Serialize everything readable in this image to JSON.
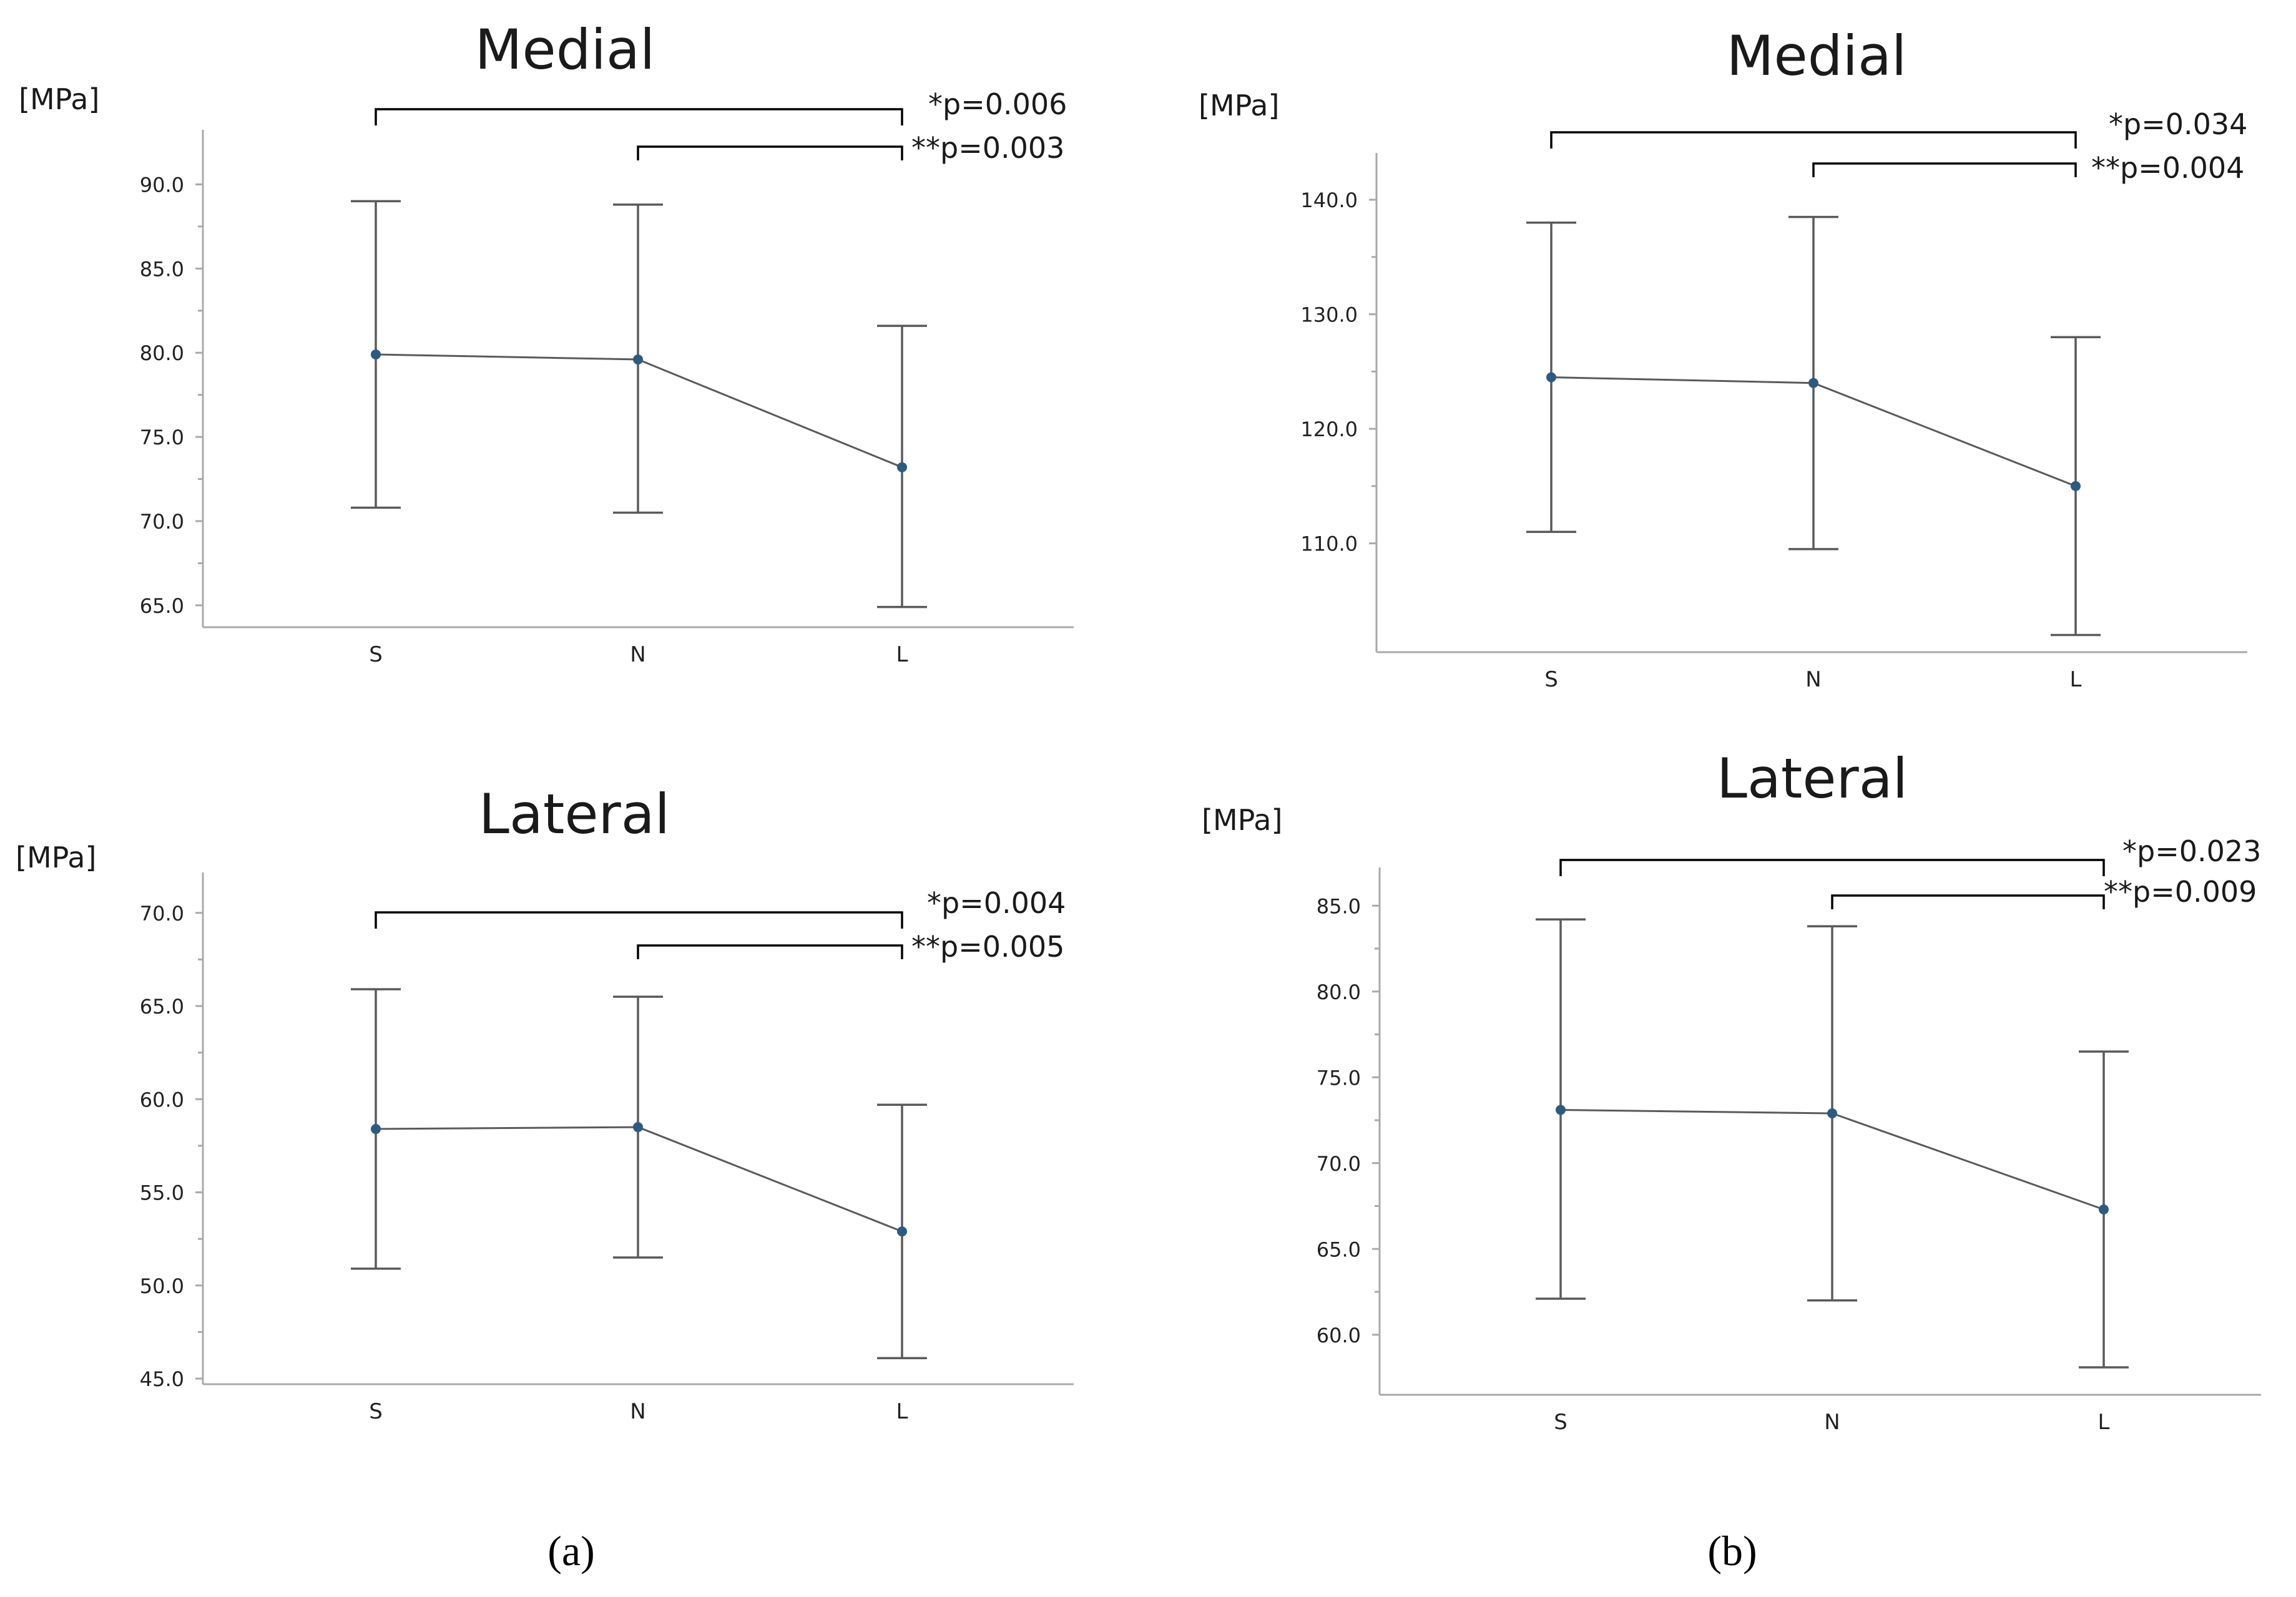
{
  "unit_label": "[MPa]",
  "panel_labels": [
    "(a)",
    "(b)"
  ],
  "chart_data": [
    {
      "type": "line",
      "panel": "a",
      "title": "Medial",
      "ylabel": "[MPa]",
      "xlabel": "",
      "categories": [
        "S",
        "N",
        "L"
      ],
      "mean": [
        79.9,
        79.6,
        73.2
      ],
      "error_upper": [
        89.0,
        88.8,
        81.6
      ],
      "error_lower": [
        70.8,
        70.5,
        64.9
      ],
      "ylim": [
        63.7,
        92.5
      ],
      "yticks": [
        "65.0",
        "70.0",
        "75.0",
        "80.0",
        "85.0",
        "90.0"
      ],
      "annotations": [
        {
          "from": "S",
          "to": "L",
          "label": "*p=0.006"
        },
        {
          "from": "N",
          "to": "L",
          "label": "**p=0.003"
        }
      ]
    },
    {
      "type": "line",
      "panel": "b",
      "title": "Medial",
      "ylabel": "[MPa]",
      "xlabel": "",
      "categories": [
        "S",
        "N",
        "L"
      ],
      "mean": [
        124.5,
        124.0,
        115.0
      ],
      "error_upper": [
        138.0,
        138.5,
        128.0
      ],
      "error_lower": [
        111.0,
        109.5,
        102.0
      ],
      "ylim": [
        100.5,
        143.0
      ],
      "yticks": [
        "110.0",
        "120.0",
        "130.0",
        "140.0"
      ],
      "annotations": [
        {
          "from": "S",
          "to": "L",
          "label": "*p=0.034"
        },
        {
          "from": "N",
          "to": "L",
          "label": "**p=0.004"
        }
      ]
    },
    {
      "type": "line",
      "panel": "a",
      "title": "Lateral",
      "ylabel": "[MPa]",
      "xlabel": "",
      "categories": [
        "S",
        "N",
        "L"
      ],
      "mean": [
        58.4,
        58.5,
        52.9
      ],
      "error_upper": [
        65.9,
        65.5,
        59.7
      ],
      "error_lower": [
        50.9,
        51.5,
        46.1
      ],
      "ylim": [
        44.7,
        71.5
      ],
      "yticks": [
        "45.0",
        "50.0",
        "55.0",
        "60.0",
        "65.0",
        "70.0"
      ],
      "annotations": [
        {
          "from": "S",
          "to": "L",
          "label": "*p=0.004"
        },
        {
          "from": "N",
          "to": "L",
          "label": "**p=0.005"
        }
      ]
    },
    {
      "type": "line",
      "panel": "b",
      "title": "Lateral",
      "ylabel": "[MPa]",
      "xlabel": "",
      "categories": [
        "S",
        "N",
        "L"
      ],
      "mean": [
        73.1,
        72.9,
        67.3
      ],
      "error_upper": [
        84.2,
        83.8,
        76.5
      ],
      "error_lower": [
        62.1,
        62.0,
        58.1
      ],
      "ylim": [
        56.5,
        86.5
      ],
      "yticks": [
        "60.0",
        "65.0",
        "70.0",
        "75.0",
        "80.0",
        "85.0"
      ],
      "annotations": [
        {
          "from": "S",
          "to": "L",
          "label": "*p=0.023"
        },
        {
          "from": "N",
          "to": "L",
          "label": "**p=0.009"
        }
      ]
    }
  ]
}
